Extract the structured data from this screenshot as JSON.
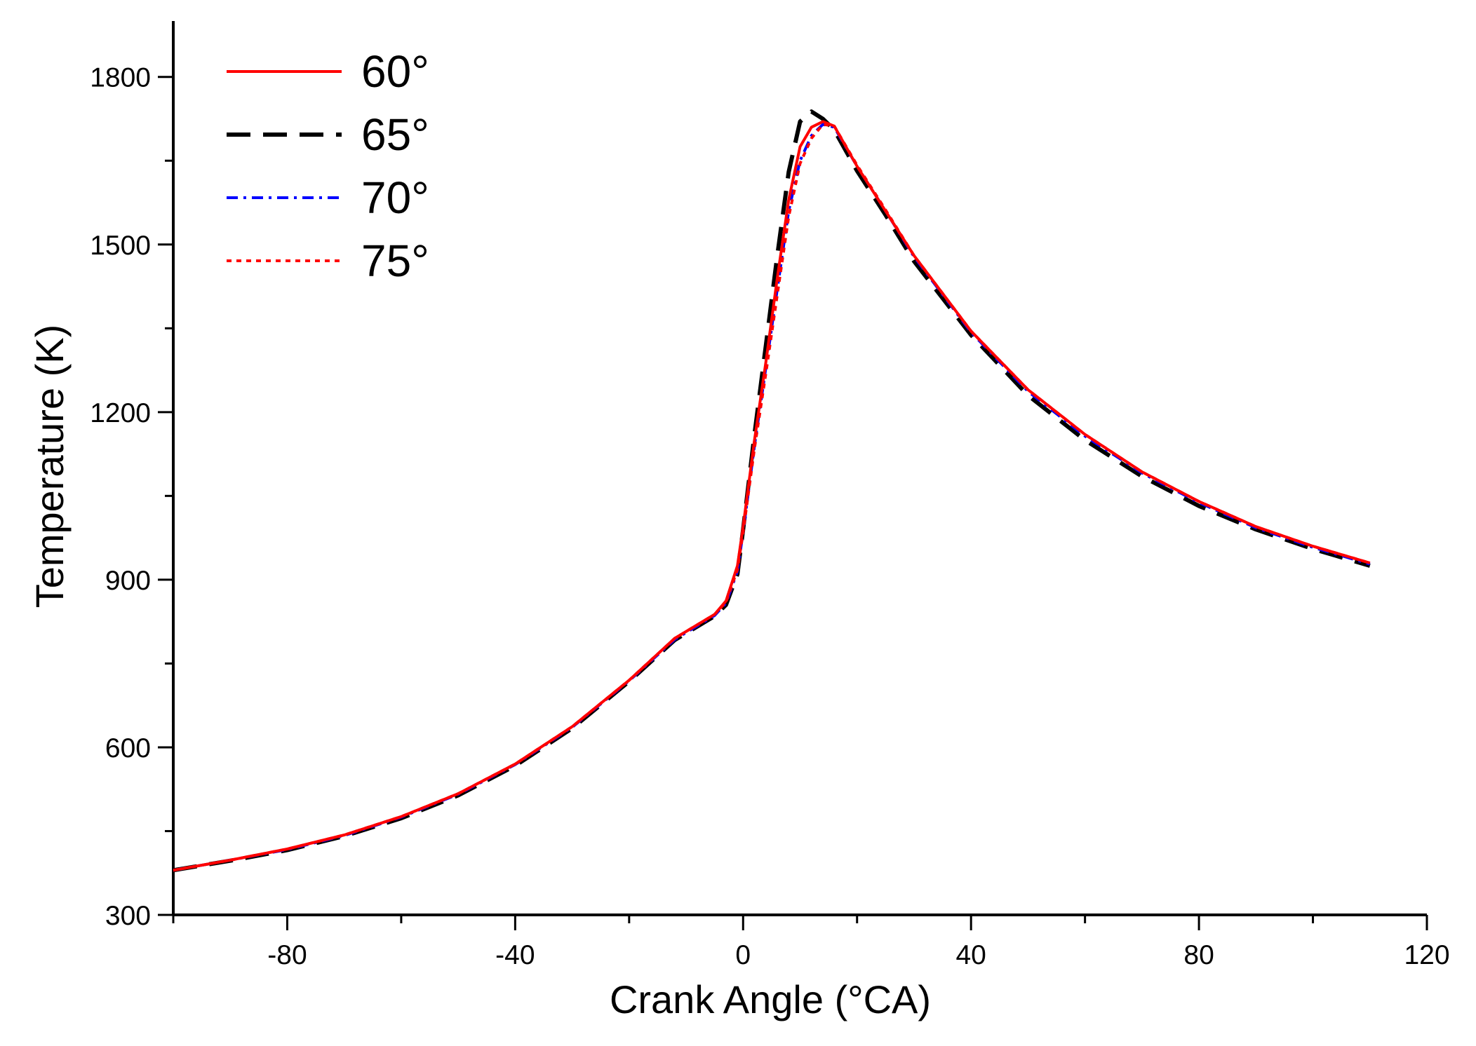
{
  "chart_data": {
    "type": "line",
    "title": "",
    "xlabel": "Crank Angle (°CA)",
    "ylabel": "Temperature (K)",
    "xlim": [
      -100,
      120
    ],
    "ylim": [
      300,
      1900
    ],
    "x_ticks": [
      -80,
      -40,
      0,
      40,
      80,
      120
    ],
    "y_ticks": [
      300,
      600,
      900,
      1200,
      1500,
      1800
    ],
    "grid": false,
    "legend_position": "top-left",
    "series": [
      {
        "name": "60°",
        "color": "#ff0000",
        "dash": "solid",
        "x": [
          -100,
          -90,
          -80,
          -70,
          -60,
          -50,
          -40,
          -30,
          -20,
          -12,
          -5,
          -3,
          -1,
          0,
          2,
          4,
          6,
          8,
          10,
          12,
          14,
          16,
          20,
          25,
          30,
          40,
          50,
          60,
          70,
          80,
          90,
          100,
          110
        ],
        "y": [
          380,
          398,
          418,
          443,
          476,
          517,
          570,
          637,
          720,
          795,
          838,
          862,
          925,
          995,
          1150,
          1290,
          1440,
          1580,
          1675,
          1710,
          1720,
          1712,
          1640,
          1560,
          1480,
          1345,
          1240,
          1160,
          1093,
          1040,
          995,
          960,
          930
        ]
      },
      {
        "name": "65°",
        "color": "#000000",
        "dash": "longdash",
        "x": [
          -100,
          -90,
          -80,
          -70,
          -60,
          -50,
          -40,
          -30,
          -20,
          -12,
          -5,
          -3,
          -1,
          0,
          2,
          4,
          6,
          8,
          10,
          12,
          14,
          16,
          20,
          25,
          30,
          40,
          50,
          60,
          70,
          80,
          90,
          100,
          110
        ],
        "y": [
          380,
          397,
          416,
          441,
          473,
          514,
          567,
          634,
          718,
          792,
          835,
          855,
          910,
          990,
          1160,
          1320,
          1480,
          1630,
          1720,
          1738,
          1725,
          1705,
          1632,
          1553,
          1470,
          1338,
          1230,
          1150,
          1085,
          1032,
          990,
          955,
          925
        ]
      },
      {
        "name": "70°",
        "color": "#0000ff",
        "dash": "dashdot",
        "x": [
          -100,
          -90,
          -80,
          -70,
          -60,
          -50,
          -40,
          -30,
          -20,
          -12,
          -5,
          -3,
          -1,
          0,
          2,
          4,
          6,
          8,
          10,
          12,
          14,
          16,
          20,
          25,
          30,
          40,
          50,
          60,
          70,
          80,
          90,
          100,
          110
        ],
        "y": [
          380,
          398,
          417,
          442,
          475,
          516,
          569,
          636,
          719,
          793,
          836,
          858,
          915,
          985,
          1140,
          1280,
          1420,
          1560,
          1650,
          1695,
          1715,
          1710,
          1640,
          1560,
          1478,
          1343,
          1237,
          1157,
          1091,
          1038,
          993,
          958,
          928
        ]
      },
      {
        "name": "75°",
        "color": "#ff0000",
        "dash": "dotted",
        "x": [
          -100,
          -90,
          -80,
          -70,
          -60,
          -50,
          -40,
          -30,
          -20,
          -12,
          -5,
          -3,
          -1,
          0,
          2,
          4,
          6,
          8,
          10,
          12,
          14,
          16,
          20,
          25,
          30,
          40,
          50,
          60,
          70,
          80,
          90,
          100,
          110
        ],
        "y": [
          380,
          398,
          418,
          443,
          476,
          517,
          570,
          637,
          720,
          795,
          838,
          860,
          918,
          985,
          1135,
          1270,
          1410,
          1550,
          1645,
          1690,
          1715,
          1712,
          1642,
          1562,
          1480,
          1345,
          1240,
          1160,
          1093,
          1040,
          995,
          960,
          930
        ]
      }
    ]
  }
}
